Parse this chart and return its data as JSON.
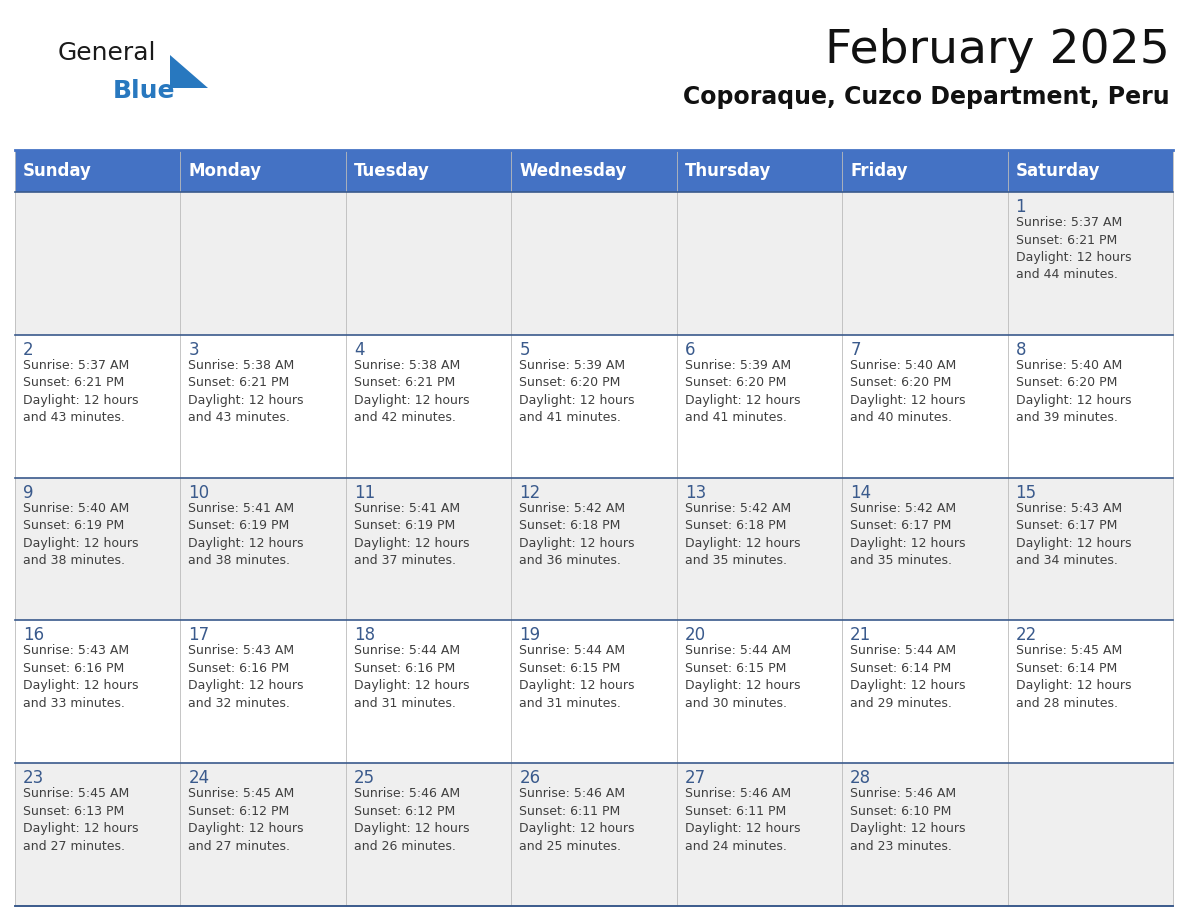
{
  "title": "February 2025",
  "subtitle": "Coporaque, Cuzco Department, Peru",
  "header_bg": "#4472C4",
  "header_text_color": "#FFFFFF",
  "days_of_week": [
    "Sunday",
    "Monday",
    "Tuesday",
    "Wednesday",
    "Thursday",
    "Friday",
    "Saturday"
  ],
  "cell_bg_odd": "#EFEFEF",
  "cell_bg_even": "#FFFFFF",
  "cell_border_top_color": "#3A5A8C",
  "cell_border_inner_color": "#CCCCCC",
  "day_number_color": "#3A5A8C",
  "info_text_color": "#404040",
  "logo_general_color": "#1A1A1A",
  "logo_blue_color": "#2878BF",
  "weeks": [
    [
      {
        "day": null,
        "info": null
      },
      {
        "day": null,
        "info": null
      },
      {
        "day": null,
        "info": null
      },
      {
        "day": null,
        "info": null
      },
      {
        "day": null,
        "info": null
      },
      {
        "day": null,
        "info": null
      },
      {
        "day": 1,
        "info": "Sunrise: 5:37 AM\nSunset: 6:21 PM\nDaylight: 12 hours\nand 44 minutes."
      }
    ],
    [
      {
        "day": 2,
        "info": "Sunrise: 5:37 AM\nSunset: 6:21 PM\nDaylight: 12 hours\nand 43 minutes."
      },
      {
        "day": 3,
        "info": "Sunrise: 5:38 AM\nSunset: 6:21 PM\nDaylight: 12 hours\nand 43 minutes."
      },
      {
        "day": 4,
        "info": "Sunrise: 5:38 AM\nSunset: 6:21 PM\nDaylight: 12 hours\nand 42 minutes."
      },
      {
        "day": 5,
        "info": "Sunrise: 5:39 AM\nSunset: 6:20 PM\nDaylight: 12 hours\nand 41 minutes."
      },
      {
        "day": 6,
        "info": "Sunrise: 5:39 AM\nSunset: 6:20 PM\nDaylight: 12 hours\nand 41 minutes."
      },
      {
        "day": 7,
        "info": "Sunrise: 5:40 AM\nSunset: 6:20 PM\nDaylight: 12 hours\nand 40 minutes."
      },
      {
        "day": 8,
        "info": "Sunrise: 5:40 AM\nSunset: 6:20 PM\nDaylight: 12 hours\nand 39 minutes."
      }
    ],
    [
      {
        "day": 9,
        "info": "Sunrise: 5:40 AM\nSunset: 6:19 PM\nDaylight: 12 hours\nand 38 minutes."
      },
      {
        "day": 10,
        "info": "Sunrise: 5:41 AM\nSunset: 6:19 PM\nDaylight: 12 hours\nand 38 minutes."
      },
      {
        "day": 11,
        "info": "Sunrise: 5:41 AM\nSunset: 6:19 PM\nDaylight: 12 hours\nand 37 minutes."
      },
      {
        "day": 12,
        "info": "Sunrise: 5:42 AM\nSunset: 6:18 PM\nDaylight: 12 hours\nand 36 minutes."
      },
      {
        "day": 13,
        "info": "Sunrise: 5:42 AM\nSunset: 6:18 PM\nDaylight: 12 hours\nand 35 minutes."
      },
      {
        "day": 14,
        "info": "Sunrise: 5:42 AM\nSunset: 6:17 PM\nDaylight: 12 hours\nand 35 minutes."
      },
      {
        "day": 15,
        "info": "Sunrise: 5:43 AM\nSunset: 6:17 PM\nDaylight: 12 hours\nand 34 minutes."
      }
    ],
    [
      {
        "day": 16,
        "info": "Sunrise: 5:43 AM\nSunset: 6:16 PM\nDaylight: 12 hours\nand 33 minutes."
      },
      {
        "day": 17,
        "info": "Sunrise: 5:43 AM\nSunset: 6:16 PM\nDaylight: 12 hours\nand 32 minutes."
      },
      {
        "day": 18,
        "info": "Sunrise: 5:44 AM\nSunset: 6:16 PM\nDaylight: 12 hours\nand 31 minutes."
      },
      {
        "day": 19,
        "info": "Sunrise: 5:44 AM\nSunset: 6:15 PM\nDaylight: 12 hours\nand 31 minutes."
      },
      {
        "day": 20,
        "info": "Sunrise: 5:44 AM\nSunset: 6:15 PM\nDaylight: 12 hours\nand 30 minutes."
      },
      {
        "day": 21,
        "info": "Sunrise: 5:44 AM\nSunset: 6:14 PM\nDaylight: 12 hours\nand 29 minutes."
      },
      {
        "day": 22,
        "info": "Sunrise: 5:45 AM\nSunset: 6:14 PM\nDaylight: 12 hours\nand 28 minutes."
      }
    ],
    [
      {
        "day": 23,
        "info": "Sunrise: 5:45 AM\nSunset: 6:13 PM\nDaylight: 12 hours\nand 27 minutes."
      },
      {
        "day": 24,
        "info": "Sunrise: 5:45 AM\nSunset: 6:12 PM\nDaylight: 12 hours\nand 27 minutes."
      },
      {
        "day": 25,
        "info": "Sunrise: 5:46 AM\nSunset: 6:12 PM\nDaylight: 12 hours\nand 26 minutes."
      },
      {
        "day": 26,
        "info": "Sunrise: 5:46 AM\nSunset: 6:11 PM\nDaylight: 12 hours\nand 25 minutes."
      },
      {
        "day": 27,
        "info": "Sunrise: 5:46 AM\nSunset: 6:11 PM\nDaylight: 12 hours\nand 24 minutes."
      },
      {
        "day": 28,
        "info": "Sunrise: 5:46 AM\nSunset: 6:10 PM\nDaylight: 12 hours\nand 23 minutes."
      },
      {
        "day": null,
        "info": null
      }
    ]
  ],
  "title_fontsize": 34,
  "subtitle_fontsize": 17,
  "header_fontsize": 12,
  "day_number_fontsize": 12,
  "info_fontsize": 9
}
